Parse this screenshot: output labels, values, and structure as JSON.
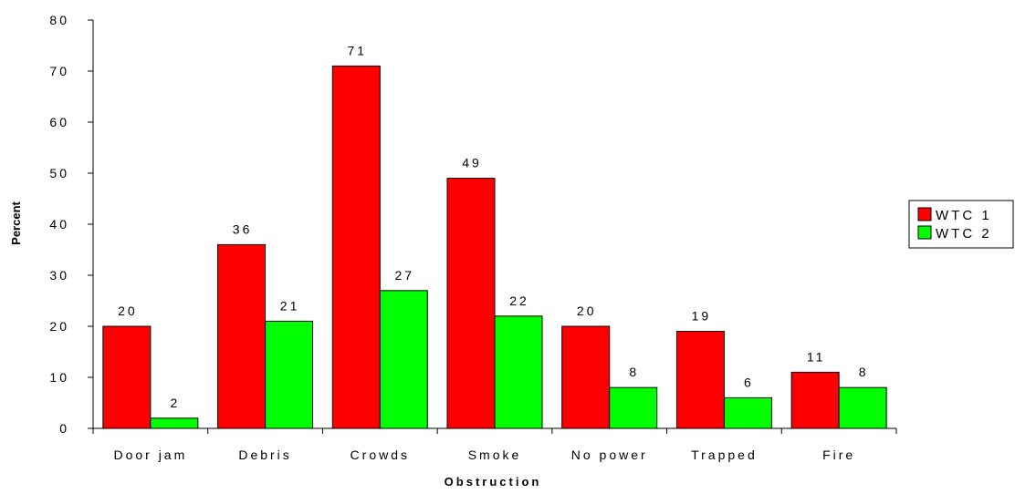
{
  "chart_data": {
    "type": "bar",
    "categories": [
      "Door jam",
      "Debris",
      "Crowds",
      "Smoke",
      "No power",
      "Trapped",
      "Fire"
    ],
    "series": [
      {
        "name": "WTC 1",
        "color": "#ff0000",
        "values": [
          20,
          36,
          71,
          49,
          20,
          19,
          11
        ]
      },
      {
        "name": "WTC 2",
        "color": "#00ff00",
        "values": [
          2,
          21,
          27,
          22,
          8,
          6,
          8
        ]
      }
    ],
    "title": "",
    "xlabel": "Obstruction",
    "ylabel": "Percent",
    "ylim": [
      0,
      80
    ],
    "yticks": [
      0,
      10,
      20,
      30,
      40,
      50,
      60,
      70,
      80
    ],
    "ytick_labels": [
      "0",
      "10",
      "20",
      "30",
      "40",
      "50",
      "60",
      "70",
      "80"
    ],
    "grid": false,
    "legend_position": "right",
    "data_labels": true
  }
}
